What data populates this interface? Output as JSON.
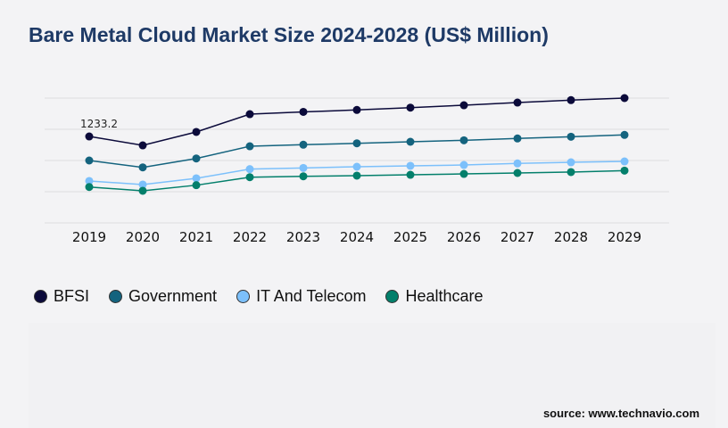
{
  "title": "Bare Metal Cloud Market Size 2024-2028 (US$ Million)",
  "source": "source: www.technavio.com",
  "chart_data": {
    "type": "line",
    "title": "Bare Metal Cloud Market Size 2024-2028 (US$ Million)",
    "x": [
      "2019",
      "2020",
      "2021",
      "2022",
      "2023",
      "2024",
      "2025",
      "2026",
      "2027",
      "2028",
      "2029"
    ],
    "ylim": [
      0,
      1780
    ],
    "grid": true,
    "legend_position": "bottom-left",
    "annotations": [
      {
        "series": "BFSI",
        "x": "2019",
        "label": "1233.2"
      }
    ],
    "series": [
      {
        "name": "BFSI",
        "color": "#0b0a3a",
        "values": [
          1233.2,
          1106,
          1297,
          1551,
          1583,
          1611,
          1644,
          1678,
          1716,
          1751,
          1780
        ]
      },
      {
        "name": "Government",
        "color": "#14637e",
        "values": [
          890,
          792,
          919,
          1093,
          1115,
          1135,
          1157,
          1178,
          1204,
          1229,
          1255
        ]
      },
      {
        "name": "IT And Telecom",
        "color": "#7cc0fb",
        "values": [
          598,
          547,
          636,
          767,
          784,
          801,
          814,
          826,
          848,
          864,
          877
        ]
      },
      {
        "name": "Healthcare",
        "color": "#037f6b",
        "values": [
          512,
          458,
          538,
          652,
          665,
          674,
          686,
          699,
          712,
          725,
          746
        ]
      }
    ]
  }
}
